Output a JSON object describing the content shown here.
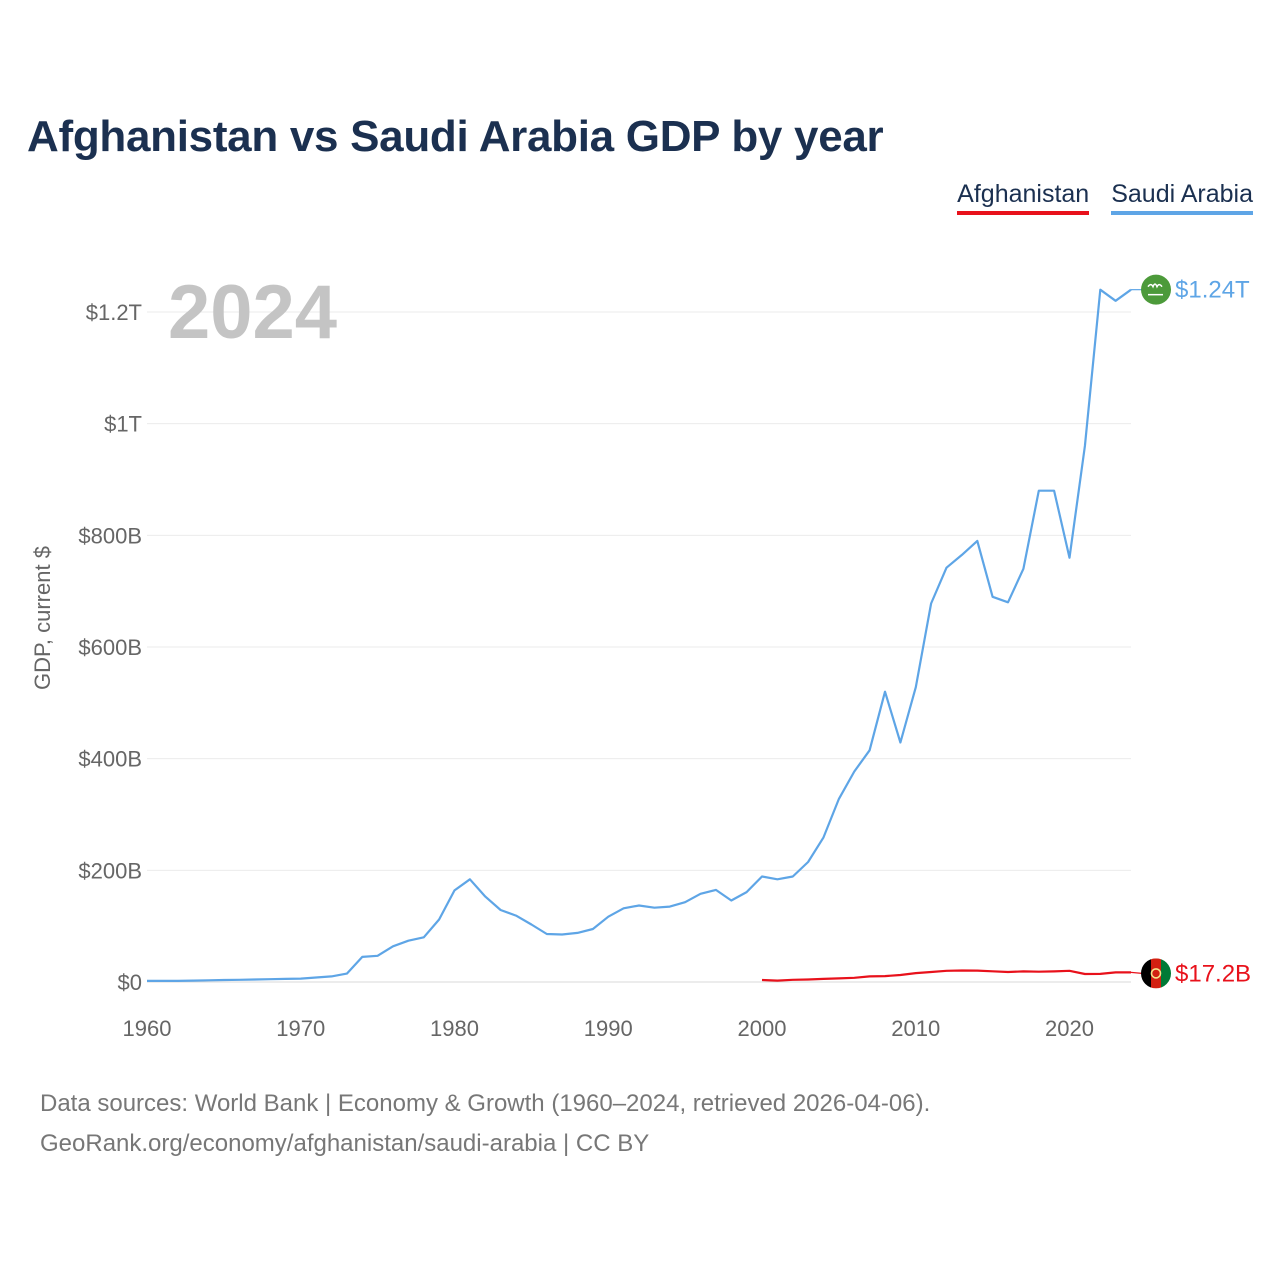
{
  "title": "Afghanistan vs Saudi Arabia GDP by year",
  "legend": [
    {
      "name": "Afghanistan",
      "color": "#e8111b"
    },
    {
      "name": "Saudi Arabia",
      "color": "#5ea5e6"
    }
  ],
  "year_label": "2024",
  "footer": {
    "line1": "Data sources: World Bank | Economy & Growth (1960–2024, retrieved 2026-04-06).",
    "line2": "GeoRank.org/economy/afghanistan/saudi-arabia | CC BY"
  },
  "chart_data": {
    "type": "line",
    "title": "Afghanistan vs Saudi Arabia GDP by year",
    "xlabel": "",
    "ylabel": "GDP, current $",
    "xlim": [
      1960,
      2024
    ],
    "ylim": [
      0,
      1300
    ],
    "y_unit": "billion US$",
    "grid": true,
    "legend_position": "top-right",
    "x_ticks": [
      1960,
      1970,
      1980,
      1990,
      2000,
      2010,
      2020
    ],
    "x_tick_labels": [
      "1960",
      "1970",
      "1980",
      "1990",
      "2000",
      "2010",
      "2020"
    ],
    "y_ticks": [
      0,
      200,
      400,
      600,
      800,
      1000,
      1200
    ],
    "y_tick_labels": [
      "$0",
      "$200B",
      "$400B",
      "$600B",
      "$800B",
      "$1T",
      "$1.2T"
    ],
    "series": [
      {
        "name": "Saudi Arabia",
        "color": "#5ea5e6",
        "end_label": "$1.24T",
        "flag_icon": "saudi-arabia-flag-icon",
        "x": [
          1960,
          1961,
          1962,
          1963,
          1964,
          1965,
          1966,
          1967,
          1968,
          1969,
          1970,
          1971,
          1972,
          1973,
          1974,
          1975,
          1976,
          1977,
          1978,
          1979,
          1980,
          1981,
          1982,
          1983,
          1984,
          1985,
          1986,
          1987,
          1988,
          1989,
          1990,
          1991,
          1992,
          1993,
          1994,
          1995,
          1996,
          1997,
          1998,
          1999,
          2000,
          2001,
          2002,
          2003,
          2004,
          2005,
          2006,
          2007,
          2008,
          2009,
          2010,
          2011,
          2012,
          2013,
          2014,
          2015,
          2016,
          2017,
          2018,
          2019,
          2020,
          2021,
          2022,
          2023,
          2024
        ],
        "values": [
          2,
          2,
          2,
          2.5,
          3,
          3.5,
          4,
          4.5,
          5,
          5.5,
          6,
          8,
          10,
          15,
          45,
          47,
          64,
          74,
          80,
          112,
          164,
          184,
          153,
          129,
          119,
          103,
          86,
          85,
          88,
          95,
          117,
          132,
          137,
          133,
          135,
          143,
          158,
          165,
          146,
          161,
          189,
          184,
          189,
          215,
          259,
          328,
          377,
          415,
          520,
          429,
          528,
          678,
          742,
          765,
          790,
          690,
          680,
          740,
          880,
          880,
          760,
          960,
          1240,
          1220,
          1240
        ]
      },
      {
        "name": "Afghanistan",
        "color": "#e8111b",
        "end_label": "$17.2B",
        "flag_icon": "afghanistan-flag-icon",
        "x": [
          2000,
          2001,
          2002,
          2003,
          2004,
          2005,
          2006,
          2007,
          2008,
          2009,
          2010,
          2011,
          2012,
          2013,
          2014,
          2015,
          2016,
          2017,
          2018,
          2019,
          2020,
          2021,
          2022,
          2023,
          2024
        ],
        "values": [
          3.5,
          2.5,
          4,
          4.5,
          5.5,
          6.5,
          7.5,
          10,
          10.5,
          12.5,
          15.9,
          17.9,
          20,
          20.6,
          20.5,
          19.1,
          18,
          18.9,
          18.4,
          18.9,
          20.1,
          14.3,
          14.5,
          17.2,
          17.2
        ]
      }
    ]
  }
}
